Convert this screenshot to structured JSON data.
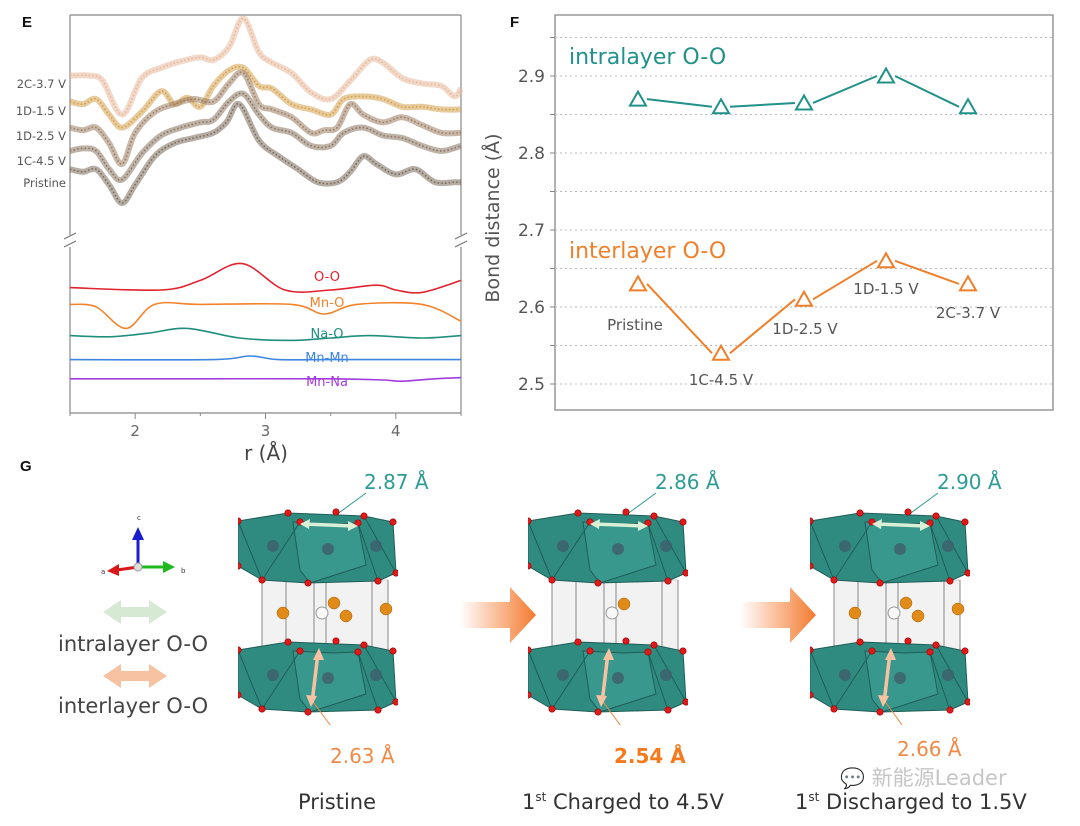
{
  "panels": {
    "e": {
      "letter": "E"
    },
    "f": {
      "letter": "F"
    },
    "g": {
      "letter": "G"
    }
  },
  "chart_data": [
    {
      "id": "E",
      "type": "line",
      "title": "",
      "xlabel": "r (Å)",
      "ylabel": "",
      "xlim": [
        1.5,
        4.5
      ],
      "xticks": [
        2,
        3,
        4
      ],
      "xtick_labels": [
        "2",
        "3",
        "4"
      ],
      "y_axis_break": true,
      "upper_series_labels": [
        "2C-3.7 V",
        "1D-1.5 V",
        "1D-2.5 V",
        "1C-4.5 V",
        "Pristine"
      ],
      "upper_series": [
        {
          "name": "2C-3.7 V",
          "color": "#e8b89a",
          "style": "open-circle-markers",
          "x": [
            1.5,
            1.65,
            1.75,
            1.9,
            2.05,
            2.2,
            2.35,
            2.5,
            2.6,
            2.72,
            2.83,
            2.95,
            3.05,
            3.2,
            3.35,
            3.5,
            3.65,
            3.8,
            3.9,
            4.05,
            4.2,
            4.35,
            4.45,
            4.5
          ],
          "y": [
            0.88,
            0.88,
            0.84,
            0.58,
            0.86,
            0.94,
            0.99,
            1.02,
            1.0,
            1.1,
            1.32,
            1.06,
            0.98,
            0.9,
            0.75,
            0.7,
            0.84,
            1.0,
            0.98,
            0.86,
            0.82,
            0.8,
            0.72,
            0.78
          ]
        },
        {
          "name": "1D-1.5 V",
          "color": "#d4a04c",
          "style": "open-circle-markers",
          "x": [
            1.5,
            1.6,
            1.7,
            1.8,
            1.9,
            2.05,
            2.2,
            2.3,
            2.4,
            2.5,
            2.6,
            2.72,
            2.83,
            2.95,
            3.05,
            3.2,
            3.35,
            3.5,
            3.6,
            3.75,
            3.9,
            4.05,
            4.2,
            4.35,
            4.5
          ],
          "y": [
            0.68,
            0.66,
            0.7,
            0.58,
            0.48,
            0.6,
            0.76,
            0.66,
            0.71,
            0.64,
            0.8,
            0.92,
            0.94,
            0.8,
            0.78,
            0.66,
            0.62,
            0.58,
            0.7,
            0.72,
            0.7,
            0.64,
            0.64,
            0.62,
            0.62
          ]
        },
        {
          "name": "1D-2.5 V",
          "color": "#9c7e62",
          "style": "open-circle-markers",
          "x": [
            1.5,
            1.6,
            1.7,
            1.8,
            1.9,
            2.0,
            2.15,
            2.3,
            2.45,
            2.6,
            2.72,
            2.83,
            2.95,
            3.05,
            3.2,
            3.35,
            3.45,
            3.55,
            3.65,
            3.75,
            3.9,
            4.05,
            4.2,
            4.35,
            4.5
          ],
          "y": [
            0.48,
            0.46,
            0.48,
            0.36,
            0.2,
            0.44,
            0.6,
            0.66,
            0.7,
            0.68,
            0.82,
            0.9,
            0.66,
            0.62,
            0.56,
            0.44,
            0.46,
            0.48,
            0.66,
            0.58,
            0.52,
            0.56,
            0.5,
            0.44,
            0.44
          ]
        },
        {
          "name": "1C-4.5 V",
          "color": "#8a7560",
          "style": "open-circle-markers",
          "x": [
            1.5,
            1.6,
            1.7,
            1.8,
            1.9,
            2.05,
            2.2,
            2.35,
            2.5,
            2.6,
            2.72,
            2.83,
            2.95,
            3.05,
            3.2,
            3.35,
            3.5,
            3.6,
            3.75,
            3.9,
            4.05,
            4.2,
            4.35,
            4.5
          ],
          "y": [
            0.3,
            0.32,
            0.3,
            0.16,
            0.08,
            0.28,
            0.42,
            0.48,
            0.52,
            0.54,
            0.68,
            0.74,
            0.58,
            0.48,
            0.44,
            0.34,
            0.34,
            0.44,
            0.48,
            0.42,
            0.4,
            0.34,
            0.3,
            0.34
          ]
        },
        {
          "name": "Pristine",
          "color": "#7a6a5a",
          "style": "open-circle-markers",
          "x": [
            1.5,
            1.6,
            1.7,
            1.8,
            1.9,
            2.0,
            2.15,
            2.3,
            2.45,
            2.6,
            2.7,
            2.8,
            2.95,
            3.1,
            3.25,
            3.4,
            3.55,
            3.65,
            3.75,
            3.85,
            4.0,
            4.15,
            4.3,
            4.45,
            4.5
          ],
          "y": [
            0.16,
            0.14,
            0.16,
            0.04,
            -0.1,
            0.04,
            0.26,
            0.36,
            0.4,
            0.44,
            0.52,
            0.66,
            0.38,
            0.26,
            0.16,
            0.06,
            0.06,
            0.14,
            0.26,
            0.2,
            0.12,
            0.16,
            0.06,
            0.06,
            0.06
          ]
        }
      ],
      "lower_series": [
        {
          "name": "O-O",
          "color": "#e0232e",
          "x": [
            1.5,
            2.2,
            2.5,
            2.82,
            3.15,
            3.5,
            3.85,
            4.0,
            4.2,
            4.5
          ],
          "y": [
            0.52,
            0.5,
            0.58,
            0.72,
            0.5,
            0.5,
            0.54,
            0.5,
            0.48,
            0.58
          ]
        },
        {
          "name": "Mn-O",
          "color": "#f2832a",
          "x": [
            1.5,
            1.7,
            1.93,
            2.15,
            2.5,
            3.2,
            3.45,
            3.7,
            4.2,
            4.5
          ],
          "y": [
            0.38,
            0.36,
            0.18,
            0.38,
            0.38,
            0.38,
            0.3,
            0.38,
            0.38,
            0.24
          ]
        },
        {
          "name": "Na-O",
          "color": "#1f8f7d",
          "x": [
            1.5,
            1.8,
            2.1,
            2.4,
            2.8,
            3.2,
            3.5,
            3.8,
            4.2,
            4.5
          ],
          "y": [
            0.12,
            0.11,
            0.14,
            0.18,
            0.1,
            0.08,
            0.1,
            0.12,
            0.1,
            0.12
          ]
        },
        {
          "name": "Mn-Mn",
          "color": "#3e86e0",
          "x": [
            1.5,
            2.6,
            2.88,
            3.1,
            3.5,
            4.5
          ],
          "y": [
            -0.08,
            -0.08,
            -0.05,
            -0.08,
            -0.08,
            -0.08
          ]
        },
        {
          "name": "Mn-Na",
          "color": "#a23ce0",
          "x": [
            1.5,
            2.5,
            3.5,
            3.9,
            4.05,
            4.3,
            4.5
          ],
          "y": [
            -0.24,
            -0.24,
            -0.24,
            -0.25,
            -0.26,
            -0.24,
            -0.23
          ]
        }
      ]
    },
    {
      "id": "F",
      "type": "line",
      "title": "",
      "xlabel": "",
      "ylabel": "Bond distance (Å)",
      "ylim": [
        2.47,
        2.97
      ],
      "yticks": [
        2.5,
        2.6,
        2.7,
        2.8,
        2.9
      ],
      "ytick_labels": [
        "2.5",
        "2.6",
        "2.7",
        "2.8",
        "2.9"
      ],
      "grid": "dotted-horizontal-every-0.05",
      "categories": [
        "Pristine",
        "1C-4.5 V",
        "1D-2.5 V",
        "1D-1.5 V",
        "2C-3.7 V"
      ],
      "series": [
        {
          "name": "intralayer O-O",
          "color": "#21918a",
          "marker": "open-triangle",
          "values": [
            2.87,
            2.86,
            2.865,
            2.9,
            2.86
          ]
        },
        {
          "name": "interlayer O-O",
          "color": "#f07f2a",
          "marker": "open-triangle",
          "values": [
            2.63,
            2.54,
            2.61,
            2.66,
            2.63
          ]
        }
      ],
      "point_labels": [
        "Pristine",
        "1C-4.5 V",
        "1D-2.5 V",
        "1D-1.5 V",
        "2C-3.7 V"
      ]
    }
  ],
  "g": {
    "axes_labels": {
      "a": "a",
      "b": "b",
      "c": "c"
    },
    "legend": [
      {
        "label": "intralayer O-O",
        "color": "#2e9c94",
        "arrow_color": "#d6ead3"
      },
      {
        "label": "interlayer O-O",
        "color": "#f08a46",
        "arrow_color": "#f6c2a2"
      }
    ],
    "structures": [
      {
        "caption_sup": "",
        "caption_prefix": "",
        "caption": "Pristine",
        "intralayer": "2.87 Å",
        "interlayer": "2.63 Å",
        "interlayer_bold": false,
        "na_atoms": 4
      },
      {
        "caption_prefix": "1",
        "caption_sup": "st",
        "caption": " Charged to 4.5V",
        "intralayer": "2.86 Å",
        "interlayer": "2.54 Å",
        "interlayer_bold": true,
        "na_atoms": 1
      },
      {
        "caption_prefix": "1",
        "caption_sup": "st",
        "caption": " Discharged to 1.5V",
        "intralayer": "2.90 Å",
        "interlayer": "2.66 Å",
        "interlayer_bold": false,
        "na_atoms": 4
      }
    ],
    "watermark": "新能源Leader",
    "colors": {
      "octahedron": "#2f8a80",
      "oxygen": "#e01a1a",
      "sodium": "#e08a18",
      "vacancy": "#f2f2f2",
      "process_arrow": "#f47a2e"
    }
  }
}
